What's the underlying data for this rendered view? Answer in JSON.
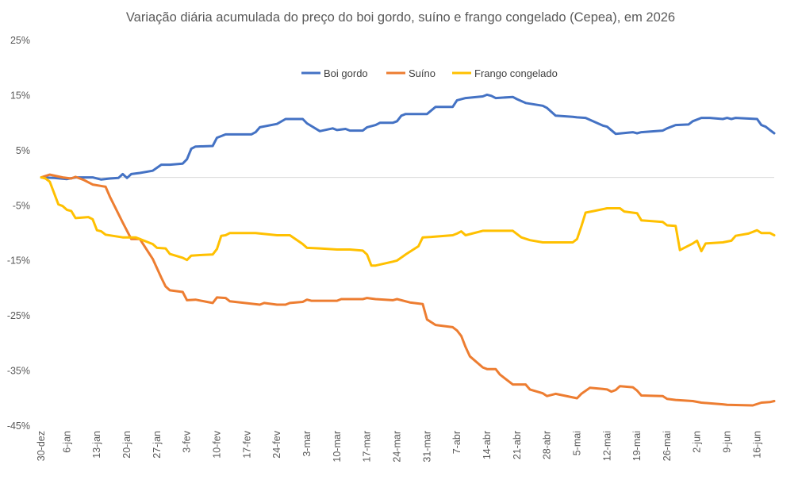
{
  "chart_data": {
    "type": "line",
    "title": "Variação diária acumulada do preço do boi gordo, suíno e frango congelado (Cepea), em 2026",
    "xlabel": "",
    "ylabel": "",
    "ylim": [
      -45,
      25
    ],
    "y_ticks": [
      25,
      15,
      5,
      -5,
      -15,
      -25,
      -35,
      -45
    ],
    "y_tick_labels": [
      "25%",
      "15%",
      "5%",
      "-5%",
      "-15%",
      "-25%",
      "-35%",
      "-45%"
    ],
    "x_tick_labels": [
      "30-dez",
      "6-jan",
      "13-jan",
      "20-jan",
      "27-jan",
      "3-fev",
      "10-fev",
      "17-fev",
      "24-fev",
      "3-mar",
      "10-mar",
      "17-mar",
      "24-mar",
      "31-mar",
      "7-abr",
      "14-abr",
      "21-abr",
      "28-abr",
      "5-mai",
      "12-mai",
      "19-mai",
      "26-mai",
      "2-jun",
      "9-jun",
      "16-jun"
    ],
    "x_range": [
      "30-dez",
      "20-jun"
    ],
    "legend_position": "top",
    "grid": false,
    "series": [
      {
        "name": "Boi gordo",
        "color": "#4472C4",
        "points": [
          [
            "30-dez",
            0
          ],
          [
            "3-jan",
            -0.1
          ],
          [
            "6-jan",
            -0.3
          ],
          [
            "8-jan",
            0
          ],
          [
            "12-jan",
            0
          ],
          [
            "14-jan",
            -0.4
          ],
          [
            "16-jan",
            -0.2
          ],
          [
            "18-jan",
            -0.1
          ],
          [
            "19-jan",
            0.6
          ],
          [
            "20-jan",
            -0.1
          ],
          [
            "21-jan",
            0.6
          ],
          [
            "23-jan",
            0.8
          ],
          [
            "26-jan",
            1.2
          ],
          [
            "28-jan",
            2.3
          ],
          [
            "30-jan",
            2.3
          ],
          [
            "2-fev",
            2.5
          ],
          [
            "3-fev",
            3.3
          ],
          [
            "4-fev",
            5.2
          ],
          [
            "5-fev",
            5.6
          ],
          [
            "9-fev",
            5.7
          ],
          [
            "10-fev",
            7.2
          ],
          [
            "12-fev",
            7.8
          ],
          [
            "18-fev",
            7.8
          ],
          [
            "19-fev",
            8.2
          ],
          [
            "20-fev",
            9.1
          ],
          [
            "24-fev",
            9.7
          ],
          [
            "26-fev",
            10.6
          ],
          [
            "2-mar",
            10.6
          ],
          [
            "3-mar",
            9.8
          ],
          [
            "6-mar",
            8.4
          ],
          [
            "9-mar",
            8.9
          ],
          [
            "10-mar",
            8.6
          ],
          [
            "12-mar",
            8.8
          ],
          [
            "13-mar",
            8.5
          ],
          [
            "16-mar",
            8.5
          ],
          [
            "17-mar",
            9.1
          ],
          [
            "19-mar",
            9.5
          ],
          [
            "20-mar",
            9.9
          ],
          [
            "23-mar",
            9.9
          ],
          [
            "24-mar",
            10.2
          ],
          [
            "25-mar",
            11.2
          ],
          [
            "26-mar",
            11.5
          ],
          [
            "31-mar",
            11.5
          ],
          [
            "2-abr",
            12.8
          ],
          [
            "6-abr",
            12.8
          ],
          [
            "7-abr",
            14.0
          ],
          [
            "9-abr",
            14.4
          ],
          [
            "13-abr",
            14.7
          ],
          [
            "14-abr",
            15.0
          ],
          [
            "15-abr",
            14.8
          ],
          [
            "16-abr",
            14.4
          ],
          [
            "20-abr",
            14.6
          ],
          [
            "21-abr",
            14.2
          ],
          [
            "23-abr",
            13.5
          ],
          [
            "27-abr",
            13.0
          ],
          [
            "28-abr",
            12.6
          ],
          [
            "30-abr",
            11.2
          ],
          [
            "4-mai",
            11.0
          ],
          [
            "5-mai",
            10.9
          ],
          [
            "7-mai",
            10.8
          ],
          [
            "11-mai",
            9.4
          ],
          [
            "12-mai",
            9.2
          ],
          [
            "14-mai",
            7.9
          ],
          [
            "18-mai",
            8.2
          ],
          [
            "19-mai",
            8.0
          ],
          [
            "20-mai",
            8.2
          ],
          [
            "25-mai",
            8.5
          ],
          [
            "26-mai",
            8.9
          ],
          [
            "28-mai",
            9.5
          ],
          [
            "31-mai",
            9.6
          ],
          [
            "1-jun",
            10.2
          ],
          [
            "3-jun",
            10.8
          ],
          [
            "5-jun",
            10.8
          ],
          [
            "8-jun",
            10.6
          ],
          [
            "9-jun",
            10.8
          ],
          [
            "10-jun",
            10.6
          ],
          [
            "11-jun",
            10.8
          ],
          [
            "16-jun",
            10.6
          ],
          [
            "17-jun",
            9.5
          ],
          [
            "18-jun",
            9.2
          ],
          [
            "19-jun",
            8.6
          ],
          [
            "20-jun",
            8.0
          ]
        ]
      },
      {
        "name": "Suíno",
        "color": "#ED7D31",
        "points": [
          [
            "30-dez",
            0
          ],
          [
            "2-jan",
            0.5
          ],
          [
            "5-jan",
            0
          ],
          [
            "7-jan",
            -0.2
          ],
          [
            "8-jan",
            0.1
          ],
          [
            "10-jan",
            -0.5
          ],
          [
            "12-jan",
            -1.3
          ],
          [
            "15-jan",
            -1.7
          ],
          [
            "16-jan",
            -3.5
          ],
          [
            "19-jan",
            -8.2
          ],
          [
            "21-jan",
            -11.2
          ],
          [
            "23-jan",
            -11.2
          ],
          [
            "26-jan",
            -14.8
          ],
          [
            "28-jan",
            -18.2
          ],
          [
            "29-jan",
            -19.8
          ],
          [
            "30-jan",
            -20.5
          ],
          [
            "2-fev",
            -20.8
          ],
          [
            "3-fev",
            -22.3
          ],
          [
            "5-fev",
            -22.2
          ],
          [
            "9-fev",
            -22.8
          ],
          [
            "10-fev",
            -21.8
          ],
          [
            "12-fev",
            -21.9
          ],
          [
            "13-fev",
            -22.5
          ],
          [
            "20-fev",
            -23.1
          ],
          [
            "21-fev",
            -22.8
          ],
          [
            "24-fev",
            -23.1
          ],
          [
            "26-fev",
            -23.1
          ],
          [
            "27-fev",
            -22.8
          ],
          [
            "2-mar",
            -22.6
          ],
          [
            "3-mar",
            -22.2
          ],
          [
            "4-mar",
            -22.4
          ],
          [
            "10-mar",
            -22.4
          ],
          [
            "11-mar",
            -22.1
          ],
          [
            "16-mar",
            -22.1
          ],
          [
            "17-mar",
            -21.9
          ],
          [
            "19-mar",
            -22.1
          ],
          [
            "23-mar",
            -22.3
          ],
          [
            "24-mar",
            -22.1
          ],
          [
            "27-mar",
            -22.7
          ],
          [
            "30-mar",
            -23.0
          ],
          [
            "31-mar",
            -25.8
          ],
          [
            "2-abr",
            -26.8
          ],
          [
            "6-abr",
            -27.2
          ],
          [
            "7-abr",
            -27.8
          ],
          [
            "8-abr",
            -28.8
          ],
          [
            "9-abr",
            -30.8
          ],
          [
            "10-abr",
            -32.5
          ],
          [
            "13-abr",
            -34.5
          ],
          [
            "14-abr",
            -34.8
          ],
          [
            "16-abr",
            -34.8
          ],
          [
            "17-abr",
            -35.8
          ],
          [
            "20-abr",
            -37.6
          ],
          [
            "23-abr",
            -37.6
          ],
          [
            "24-abr",
            -38.5
          ],
          [
            "27-abr",
            -39.2
          ],
          [
            "28-abr",
            -39.7
          ],
          [
            "30-abr",
            -39.3
          ],
          [
            "5-mai",
            -40.1
          ],
          [
            "6-mai",
            -39.3
          ],
          [
            "8-mai",
            -38.2
          ],
          [
            "11-mai",
            -38.4
          ],
          [
            "12-mai",
            -38.5
          ],
          [
            "13-mai",
            -38.9
          ],
          [
            "14-mai",
            -38.6
          ],
          [
            "15-mai",
            -37.9
          ],
          [
            "18-mai",
            -38.1
          ],
          [
            "19-mai",
            -38.7
          ],
          [
            "20-mai",
            -39.6
          ],
          [
            "25-mai",
            -39.7
          ],
          [
            "26-mai",
            -40.2
          ],
          [
            "28-mai",
            -40.4
          ],
          [
            "1-jun",
            -40.6
          ],
          [
            "3-jun",
            -40.9
          ],
          [
            "8-jun",
            -41.2
          ],
          [
            "9-jun",
            -41.3
          ],
          [
            "15-jun",
            -41.4
          ],
          [
            "17-jun",
            -40.9
          ],
          [
            "19-jun",
            -40.8
          ],
          [
            "20-jun",
            -40.6
          ]
        ]
      },
      {
        "name": "Frango congelado",
        "color": "#FFC000",
        "points": [
          [
            "30-dez",
            0
          ],
          [
            "1-jan",
            -0.2
          ],
          [
            "2-jan",
            -0.8
          ],
          [
            "4-jan",
            -4.9
          ],
          [
            "5-jan",
            -5.2
          ],
          [
            "6-jan",
            -5.9
          ],
          [
            "7-jan",
            -6.1
          ],
          [
            "8-jan",
            -7.4
          ],
          [
            "11-jan",
            -7.2
          ],
          [
            "12-jan",
            -7.6
          ],
          [
            "13-jan",
            -9.6
          ],
          [
            "14-jan",
            -9.8
          ],
          [
            "15-jan",
            -10.4
          ],
          [
            "19-jan",
            -10.9
          ],
          [
            "22-jan",
            -10.9
          ],
          [
            "23-jan",
            -11.2
          ],
          [
            "26-jan",
            -12.1
          ],
          [
            "27-jan",
            -12.8
          ],
          [
            "29-jan",
            -12.9
          ],
          [
            "30-jan",
            -13.9
          ],
          [
            "2-fev",
            -14.6
          ],
          [
            "3-fev",
            -15.0
          ],
          [
            "4-fev",
            -14.2
          ],
          [
            "6-fev",
            -14.1
          ],
          [
            "9-fev",
            -14.0
          ],
          [
            "10-fev",
            -13.0
          ],
          [
            "11-fev",
            -10.6
          ],
          [
            "12-fev",
            -10.5
          ],
          [
            "13-fev",
            -10.1
          ],
          [
            "19-fev",
            -10.1
          ],
          [
            "24-fev",
            -10.5
          ],
          [
            "27-fev",
            -10.5
          ],
          [
            "2-mar",
            -12.1
          ],
          [
            "3-mar",
            -12.8
          ],
          [
            "6-mar",
            -12.9
          ],
          [
            "10-mar",
            -13.1
          ],
          [
            "13-mar",
            -13.1
          ],
          [
            "16-mar",
            -13.3
          ],
          [
            "17-mar",
            -14.0
          ],
          [
            "18-mar",
            -16.0
          ],
          [
            "19-mar",
            -16.0
          ],
          [
            "23-mar",
            -15.3
          ],
          [
            "24-mar",
            -15.1
          ],
          [
            "26-mar",
            -14.0
          ],
          [
            "29-mar",
            -12.5
          ],
          [
            "30-mar",
            -10.9
          ],
          [
            "1-abr",
            -10.8
          ],
          [
            "6-abr",
            -10.5
          ],
          [
            "7-abr",
            -10.2
          ],
          [
            "8-abr",
            -9.8
          ],
          [
            "9-abr",
            -10.5
          ],
          [
            "13-abr",
            -9.7
          ],
          [
            "20-abr",
            -9.7
          ],
          [
            "22-abr",
            -10.9
          ],
          [
            "24-abr",
            -11.4
          ],
          [
            "27-abr",
            -11.8
          ],
          [
            "4-mai",
            -11.8
          ],
          [
            "5-mai",
            -11.2
          ],
          [
            "6-mai",
            -8.9
          ],
          [
            "7-mai",
            -6.4
          ],
          [
            "9-mai",
            -6.1
          ],
          [
            "12-mai",
            -5.6
          ],
          [
            "15-mai",
            -5.6
          ],
          [
            "16-mai",
            -6.2
          ],
          [
            "19-mai",
            -6.5
          ],
          [
            "20-mai",
            -7.8
          ],
          [
            "25-mai",
            -8.1
          ],
          [
            "26-mai",
            -8.7
          ],
          [
            "28-mai",
            -8.8
          ],
          [
            "29-mai",
            -13.2
          ],
          [
            "1-jun",
            -12.0
          ],
          [
            "2-jun",
            -11.5
          ],
          [
            "3-jun",
            -13.4
          ],
          [
            "4-jun",
            -12.0
          ],
          [
            "8-jun",
            -11.8
          ],
          [
            "10-jun",
            -11.5
          ],
          [
            "11-jun",
            -10.6
          ],
          [
            "14-jun",
            -10.2
          ],
          [
            "16-jun",
            -9.6
          ],
          [
            "17-jun",
            -10.1
          ],
          [
            "19-jun",
            -10.1
          ],
          [
            "20-jun",
            -10.5
          ]
        ]
      }
    ]
  }
}
